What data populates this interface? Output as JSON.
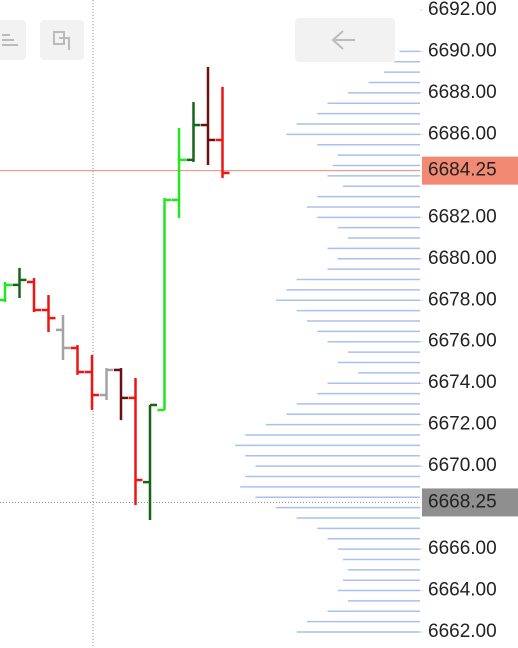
{
  "chart_data": {
    "type": "ohlc",
    "ylim": [
      6661.23,
      6692.48
    ],
    "yticks": [
      {
        "value": 6662,
        "label": "6662.00"
      },
      {
        "value": 6664,
        "label": "6664.00"
      },
      {
        "value": 6666,
        "label": "6666.00"
      },
      {
        "value": 6668,
        "label": "6668.00"
      },
      {
        "value": 6670,
        "label": "6670.00"
      },
      {
        "value": 6672,
        "label": "6672.00"
      },
      {
        "value": 6674,
        "label": "6674.00"
      },
      {
        "value": 6676,
        "label": "6676.00"
      },
      {
        "value": 6678,
        "label": "6678.00"
      },
      {
        "value": 6680,
        "label": "6680.00"
      },
      {
        "value": 6682,
        "label": "6682.00"
      },
      {
        "value": 6684,
        "label": "6684.00"
      },
      {
        "value": 6686,
        "label": "6686.00"
      },
      {
        "value": 6688,
        "label": "6688.00"
      },
      {
        "value": 6690,
        "label": "6690.00"
      },
      {
        "value": 6692,
        "label": "6692.00"
      }
    ],
    "candles": [
      {
        "open": 6678.01,
        "high": 6678.88,
        "low": 6677.92,
        "close": 6678.74,
        "color": "#22e622"
      },
      {
        "open": 6678.74,
        "high": 6679.56,
        "low": 6678.11,
        "close": 6678.98,
        "color": "#16661a"
      },
      {
        "open": 6678.88,
        "high": 6679.07,
        "low": 6677.43,
        "close": 6677.53,
        "color": "#ee1515"
      },
      {
        "open": 6677.53,
        "high": 6678.25,
        "low": 6676.47,
        "close": 6677.14,
        "color": "#ee1515"
      },
      {
        "open": 6676.57,
        "high": 6677.29,
        "low": 6675.12,
        "close": 6675.7,
        "color": "#a3a3a3"
      },
      {
        "open": 6675.7,
        "high": 6675.84,
        "low": 6674.4,
        "close": 6674.54,
        "color": "#ee1515"
      },
      {
        "open": 6674.54,
        "high": 6675.36,
        "low": 6672.71,
        "close": 6673.43,
        "color": "#ee1515"
      },
      {
        "open": 6673.43,
        "high": 6674.73,
        "low": 6673.19,
        "close": 6674.64,
        "color": "#a3a3a3"
      },
      {
        "open": 6674.64,
        "high": 6674.73,
        "low": 6672.22,
        "close": 6673.29,
        "color": "#6b1010"
      },
      {
        "open": 6673.29,
        "high": 6674.25,
        "low": 6668.12,
        "close": 6669.33,
        "color": "#ee1515"
      },
      {
        "open": 6669.23,
        "high": 6672.95,
        "low": 6667.4,
        "close": 6672.95,
        "color": "#16661a"
      },
      {
        "open": 6672.71,
        "high": 6682.93,
        "low": 6672.71,
        "close": 6682.84,
        "color": "#22e622"
      },
      {
        "open": 6682.84,
        "high": 6686.31,
        "low": 6681.97,
        "close": 6684.77,
        "color": "#22e622"
      },
      {
        "open": 6684.77,
        "high": 6687.56,
        "low": 6684.67,
        "close": 6686.45,
        "color": "#16661a"
      },
      {
        "open": 6686.45,
        "high": 6689.25,
        "low": 6684.52,
        "close": 6685.73,
        "color": "#6b1010"
      },
      {
        "open": 6685.73,
        "high": 6688.29,
        "low": 6683.9,
        "close": 6684.14,
        "color": "#ee1515"
      }
    ],
    "volume_profile": {
      "color": "#a9c1ec",
      "prices": [
        6690,
        6689.5,
        6689,
        6688.5,
        6688,
        6687.5,
        6687,
        6686.5,
        6686,
        6685.5,
        6685,
        6684.5,
        6684,
        6683.5,
        6683,
        6682.5,
        6682,
        6681.5,
        6681,
        6680.5,
        6680,
        6679.5,
        6679,
        6678.5,
        6678,
        6677.5,
        6677,
        6676.5,
        6676,
        6675.5,
        6675,
        6674.5,
        6674,
        6673.5,
        6673,
        6672.5,
        6672,
        6671.5,
        6671,
        6670.5,
        6670,
        6669.5,
        6669,
        6668.5,
        6668,
        6667.5,
        6667,
        6666.5,
        6666,
        6665.5,
        6665,
        6664.5,
        6664,
        6663.5,
        6663,
        6662.5,
        6662
      ],
      "values": [
        20,
        25,
        35,
        50,
        70,
        90,
        100,
        120,
        130,
        100,
        80,
        85,
        90,
        75,
        100,
        110,
        100,
        80,
        70,
        90,
        80,
        90,
        120,
        130,
        140,
        120,
        110,
        100,
        90,
        70,
        80,
        60,
        90,
        100,
        120,
        130,
        150,
        170,
        180,
        170,
        160,
        170,
        175,
        160,
        140,
        120,
        100,
        90,
        80,
        75,
        70,
        75,
        80,
        70,
        90,
        110,
        120
      ]
    },
    "price_markers": [
      {
        "value": 6684.25,
        "color": "#f28a73",
        "line": "solid"
      },
      {
        "value": 6668.25,
        "color": "#8f8f8f",
        "line": "dotted"
      }
    ]
  }
}
